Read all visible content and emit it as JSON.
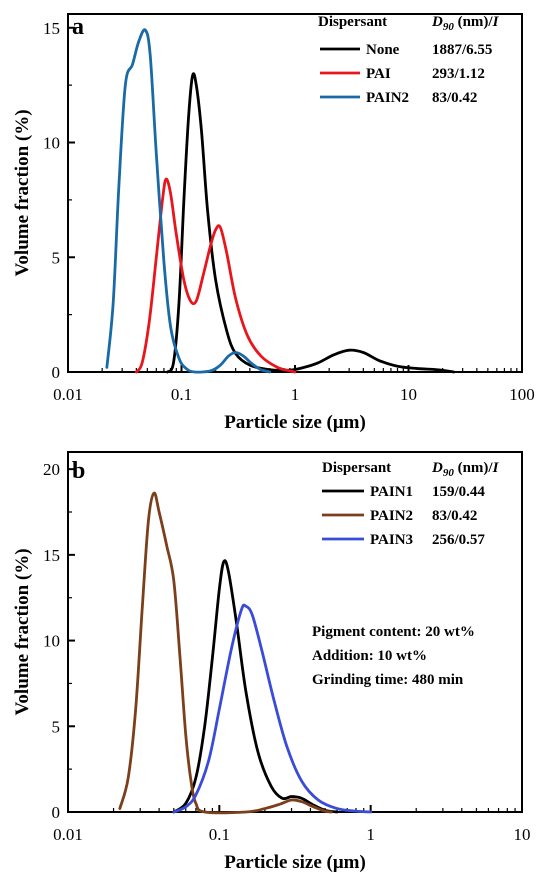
{
  "chart_data": [
    {
      "type": "line",
      "panel": "a",
      "xlabel": "Particle size (μm)",
      "ylabel": "Volume fraction (%)",
      "xscale": "log",
      "xlim": [
        0.01,
        100
      ],
      "ylim": [
        0,
        15.6
      ],
      "xticks": [
        0.01,
        0.1,
        1,
        10,
        100
      ],
      "xtick_labels": [
        "0.01",
        "0.1",
        "1",
        "10",
        "100"
      ],
      "yticks": [
        0,
        5,
        10,
        15
      ],
      "ytick_labels": [
        "0",
        "5",
        "10",
        "15"
      ],
      "grid": false,
      "legend_placement": "top-right",
      "legend_header": {
        "col1": "Dispersant",
        "col2_italic": "D",
        "col2_sub": "90",
        "col2_rest": " (nm)/",
        "col2_tail_italic": "I"
      },
      "series": [
        {
          "name": "None",
          "color": "#000000",
          "value_label": "1887/6.55",
          "points": [
            [
              0.075,
              0.0
            ],
            [
              0.085,
              0.4
            ],
            [
              0.095,
              3.0
            ],
            [
              0.105,
              7.5
            ],
            [
              0.115,
              11.0
            ],
            [
              0.125,
              12.9
            ],
            [
              0.135,
              12.5
            ],
            [
              0.15,
              10.5
            ],
            [
              0.17,
              7.0
            ],
            [
              0.2,
              4.0
            ],
            [
              0.25,
              1.8
            ],
            [
              0.3,
              0.8
            ],
            [
              0.4,
              0.3
            ],
            [
              0.6,
              0.1
            ],
            [
              0.9,
              0.08
            ],
            [
              1.2,
              0.2
            ],
            [
              1.6,
              0.4
            ],
            [
              2.2,
              0.75
            ],
            [
              3.0,
              0.95
            ],
            [
              4.0,
              0.85
            ],
            [
              5.5,
              0.5
            ],
            [
              8.0,
              0.25
            ],
            [
              12.0,
              0.15
            ],
            [
              18.0,
              0.1
            ],
            [
              25.0,
              0.0
            ]
          ]
        },
        {
          "name": "PAI",
          "color": "#e8161c",
          "value_label": "293/1.12",
          "points": [
            [
              0.04,
              0.0
            ],
            [
              0.045,
              0.4
            ],
            [
              0.052,
              2.2
            ],
            [
              0.06,
              5.0
            ],
            [
              0.068,
              7.5
            ],
            [
              0.073,
              8.4
            ],
            [
              0.08,
              7.8
            ],
            [
              0.09,
              6.0
            ],
            [
              0.105,
              4.0
            ],
            [
              0.12,
              3.1
            ],
            [
              0.135,
              3.1
            ],
            [
              0.155,
              4.2
            ],
            [
              0.18,
              5.5
            ],
            [
              0.2,
              6.2
            ],
            [
              0.22,
              6.3
            ],
            [
              0.25,
              5.2
            ],
            [
              0.3,
              3.2
            ],
            [
              0.38,
              1.6
            ],
            [
              0.5,
              0.7
            ],
            [
              0.7,
              0.2
            ],
            [
              0.9,
              0.05
            ],
            [
              1.0,
              0.0
            ]
          ]
        },
        {
          "name": "PAIN2",
          "color": "#1a6aa6",
          "value_label": "83/0.42",
          "points": [
            [
              0.022,
              0.2
            ],
            [
              0.025,
              3.0
            ],
            [
              0.028,
              8.0
            ],
            [
              0.032,
              12.5
            ],
            [
              0.037,
              13.4
            ],
            [
              0.042,
              14.4
            ],
            [
              0.048,
              14.9
            ],
            [
              0.053,
              13.8
            ],
            [
              0.06,
              9.5
            ],
            [
              0.07,
              4.8
            ],
            [
              0.08,
              2.0
            ],
            [
              0.095,
              0.6
            ],
            [
              0.11,
              0.15
            ],
            [
              0.13,
              0.0
            ],
            [
              0.18,
              0.05
            ],
            [
              0.22,
              0.3
            ],
            [
              0.26,
              0.7
            ],
            [
              0.3,
              0.85
            ],
            [
              0.35,
              0.7
            ],
            [
              0.42,
              0.35
            ],
            [
              0.5,
              0.1
            ],
            [
              0.6,
              0.0
            ]
          ]
        }
      ]
    },
    {
      "type": "line",
      "panel": "b",
      "xlabel": "Particle size (μm)",
      "ylabel": "Volume fraction (%)",
      "xscale": "log",
      "xlim": [
        0.01,
        10
      ],
      "ylim": [
        0,
        21
      ],
      "xticks": [
        0.01,
        0.1,
        1,
        10
      ],
      "xtick_labels": [
        "0.01",
        "0.1",
        "1",
        "10"
      ],
      "yticks": [
        0,
        5,
        10,
        15,
        20
      ],
      "ytick_labels": [
        "0",
        "5",
        "10",
        "15",
        "20"
      ],
      "grid": false,
      "legend_placement": "top-right",
      "legend_header": {
        "col1": "Dispersant",
        "col2_italic": "D",
        "col2_sub": "90",
        "col2_rest": " (nm)/",
        "col2_tail_italic": "I"
      },
      "annotations": [
        "Pigment content: 20 wt%",
        "Addition: 10 wt%",
        "Grinding time: 480 min"
      ],
      "series": [
        {
          "name": "PAIN1",
          "color": "#000000",
          "value_label": "159/0.44",
          "points": [
            [
              0.05,
              0.0
            ],
            [
              0.06,
              0.5
            ],
            [
              0.07,
              2.0
            ],
            [
              0.08,
              5.0
            ],
            [
              0.09,
              9.0
            ],
            [
              0.1,
              13.0
            ],
            [
              0.107,
              14.6
            ],
            [
              0.115,
              14.0
            ],
            [
              0.13,
              11.0
            ],
            [
              0.15,
              7.0
            ],
            [
              0.18,
              3.5
            ],
            [
              0.22,
              1.5
            ],
            [
              0.26,
              0.8
            ],
            [
              0.3,
              0.9
            ],
            [
              0.35,
              0.8
            ],
            [
              0.42,
              0.4
            ],
            [
              0.5,
              0.1
            ],
            [
              0.6,
              0.0
            ]
          ]
        },
        {
          "name": "PAIN2",
          "color": "#7b3f1b",
          "value_label": "83/0.42",
          "points": [
            [
              0.022,
              0.2
            ],
            [
              0.025,
              2.0
            ],
            [
              0.028,
              6.0
            ],
            [
              0.031,
              12.0
            ],
            [
              0.034,
              17.0
            ],
            [
              0.037,
              18.6
            ],
            [
              0.04,
              17.5
            ],
            [
              0.045,
              15.5
            ],
            [
              0.05,
              13.5
            ],
            [
              0.055,
              9.0
            ],
            [
              0.06,
              4.5
            ],
            [
              0.065,
              1.8
            ],
            [
              0.07,
              0.5
            ],
            [
              0.08,
              0.0
            ],
            [
              0.15,
              0.0
            ],
            [
              0.2,
              0.2
            ],
            [
              0.25,
              0.45
            ],
            [
              0.3,
              0.7
            ],
            [
              0.35,
              0.6
            ],
            [
              0.42,
              0.3
            ],
            [
              0.5,
              0.05
            ],
            [
              0.55,
              0.0
            ]
          ]
        },
        {
          "name": "PAIN3",
          "color": "#3a4bd8",
          "value_label": "256/0.57",
          "points": [
            [
              0.05,
              0.0
            ],
            [
              0.06,
              0.3
            ],
            [
              0.07,
              1.0
            ],
            [
              0.085,
              3.0
            ],
            [
              0.1,
              6.0
            ],
            [
              0.12,
              9.5
            ],
            [
              0.14,
              11.8
            ],
            [
              0.15,
              12.0
            ],
            [
              0.165,
              11.5
            ],
            [
              0.19,
              9.5
            ],
            [
              0.23,
              6.5
            ],
            [
              0.28,
              3.8
            ],
            [
              0.35,
              1.8
            ],
            [
              0.45,
              0.7
            ],
            [
              0.6,
              0.2
            ],
            [
              0.8,
              0.05
            ],
            [
              1.0,
              0.0
            ]
          ]
        }
      ]
    }
  ]
}
